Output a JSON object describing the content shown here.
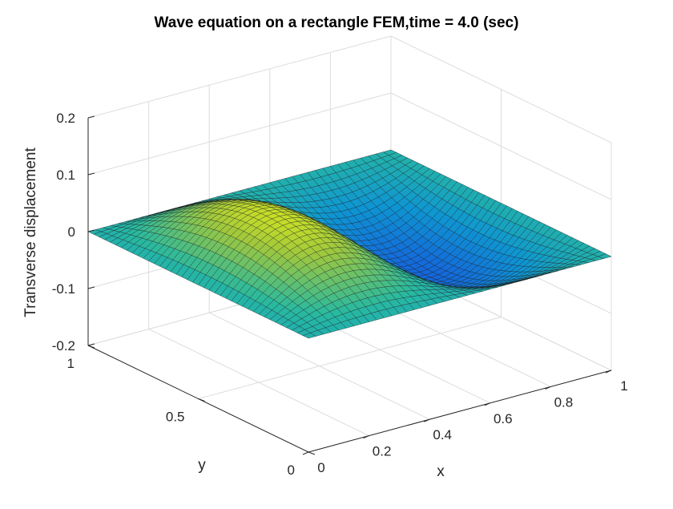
{
  "chart_data": {
    "type": "surface",
    "title": "Wave equation on a rectangle FEM,time =  4.0 (sec)",
    "xlabel": "x",
    "ylabel": "y",
    "zlabel": "Transverse displacement",
    "xlim": [
      0,
      1
    ],
    "ylim": [
      0,
      1
    ],
    "zlim": [
      -0.2,
      0.2
    ],
    "x_ticks": [
      "0",
      "0.2",
      "0.4",
      "0.6",
      "0.8",
      "1"
    ],
    "y_ticks": [
      "0",
      "0.5",
      "1"
    ],
    "z_ticks": [
      "-0.2",
      "-0.1",
      "0",
      "0.1",
      "0.2"
    ],
    "grid": true,
    "colormap": "parula",
    "mesh_resolution": 40,
    "surface_function": "z = A*sin(2*pi*x)*sin(pi*y), boundary fixed at 0",
    "amplitude": 0.09,
    "colors": {
      "edge": "#1a1a1a",
      "grid": "#dcdcdc",
      "axis": "#262626"
    }
  }
}
